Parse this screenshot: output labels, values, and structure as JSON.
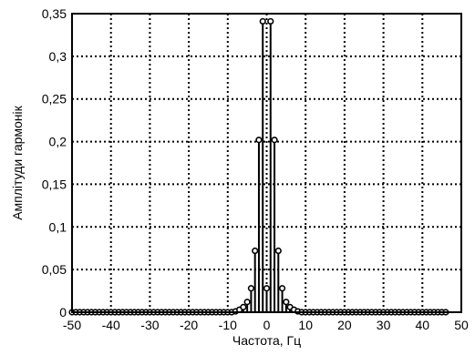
{
  "chart_data": {
    "type": "stem",
    "xlabel": "Частота, Гц",
    "ylabel": "Амплітуди гармонік",
    "xlim": [
      -50,
      50
    ],
    "ylim": [
      0,
      0.35
    ],
    "grid": true,
    "grid_style": "dotted",
    "x_ticks": [
      {
        "value": -50,
        "label": "-50"
      },
      {
        "value": -40,
        "label": "-40"
      },
      {
        "value": -30,
        "label": "-30"
      },
      {
        "value": -20,
        "label": "-20"
      },
      {
        "value": -10,
        "label": "-10"
      },
      {
        "value": 0,
        "label": "0"
      },
      {
        "value": 10,
        "label": "10"
      },
      {
        "value": 20,
        "label": "20"
      },
      {
        "value": 30,
        "label": "30"
      },
      {
        "value": 40,
        "label": "40"
      },
      {
        "value": 50,
        "label": "50"
      }
    ],
    "y_ticks": [
      {
        "value": 0,
        "label": "0"
      },
      {
        "value": 0.05,
        "label": "0,05"
      },
      {
        "value": 0.1,
        "label": "0,1"
      },
      {
        "value": 0.15,
        "label": "0,15"
      },
      {
        "value": 0.2,
        "label": "0,2"
      },
      {
        "value": 0.25,
        "label": "0,25"
      },
      {
        "value": 0.3,
        "label": "0,3"
      },
      {
        "value": 0.35,
        "label": "0,35"
      }
    ],
    "x": [
      -50,
      -49,
      -48,
      -47,
      -46,
      -45,
      -44,
      -43,
      -42,
      -41,
      -40,
      -39,
      -38,
      -37,
      -36,
      -35,
      -34,
      -33,
      -32,
      -31,
      -30,
      -29,
      -28,
      -27,
      -26,
      -25,
      -24,
      -23,
      -22,
      -21,
      -20,
      -19,
      -18,
      -17,
      -16,
      -15,
      -14,
      -13,
      -12,
      -11,
      -10,
      -9,
      -8,
      -7,
      -6,
      -5,
      -4,
      -3,
      -2,
      -1,
      0,
      1,
      2,
      3,
      4,
      5,
      6,
      7,
      8,
      9,
      10,
      11,
      12,
      13,
      14,
      15,
      16,
      17,
      18,
      19,
      20,
      21,
      22,
      23,
      24,
      25,
      26,
      27,
      28,
      29,
      30,
      31,
      32,
      33,
      34,
      35,
      36,
      37,
      38,
      39,
      40,
      41,
      42,
      43,
      44,
      45,
      46
    ],
    "values": [
      0,
      0,
      0,
      0,
      0,
      0,
      0,
      0,
      0,
      0,
      0,
      0,
      0,
      0,
      0,
      0,
      0,
      0,
      0,
      0,
      0,
      0,
      0,
      0,
      0,
      0,
      0,
      0,
      0,
      0,
      0,
      0,
      0,
      0,
      0,
      0,
      0,
      0,
      0,
      0,
      0,
      0,
      0.001,
      0.003,
      0.006,
      0.012,
      0.028,
      0.072,
      0.202,
      0.341,
      0.028,
      0.341,
      0.202,
      0.072,
      0.028,
      0.012,
      0.006,
      0.003,
      0.001,
      0,
      0,
      0,
      0,
      0,
      0,
      0,
      0,
      0,
      0,
      0,
      0,
      0,
      0,
      0,
      0,
      0,
      0,
      0,
      0,
      0,
      0,
      0,
      0,
      0,
      0,
      0,
      0,
      0,
      0,
      0,
      0,
      0,
      0,
      0,
      0,
      0,
      0
    ]
  }
}
